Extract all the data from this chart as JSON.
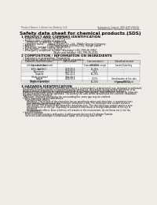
{
  "bg_color": "#f0ede8",
  "header_left": "Product Name: Lithium Ion Battery Cell",
  "header_right_line1": "Substance Control: SRS-049-00015",
  "header_right_line2": "Established / Revision: Dec.7.2010",
  "title": "Safety data sheet for chemical products (SDS)",
  "section1_title": "1 PRODUCT AND COMPANY IDENTIFICATION",
  "section1_lines": [
    "  • Product name: Lithium Ion Battery Cell",
    "  • Product code: Cylindrical-type cell",
    "       SY-B8550, SY-B8550L, SY-B8550A",
    "  • Company name:     Sanyo Electric Co., Ltd., Mobile Energy Company",
    "  • Address:               2001 Kamikosaka, Sumoto-City, Hyogo, Japan",
    "  • Telephone number:  +81-799-26-4111",
    "  • Fax number:  +81-799-26-4121",
    "  • Emergency telephone number (Weekday) +81-799-26-3962",
    "                                         (Night and holiday) +81-799-26-4121"
  ],
  "section2_title": "2 COMPOSITION / INFORMATION ON INGREDIENTS",
  "section2_intro": "  • Substance or preparation: Preparation",
  "section2_sub": "  • Information about the chemical nature of product:",
  "table_headers": [
    "Common chemical name /\nSpecies name",
    "CAS number",
    "Concentration /\nConcentration range",
    "Classification and\nhazard labeling"
  ],
  "table_rows": [
    [
      "Lithium cobalt (laminate)\n(LiMn-Co)(NiO₂)",
      "-",
      "(30-60%)",
      "-"
    ],
    [
      "Iron",
      "7439-89-6",
      "15-25%",
      "-"
    ],
    [
      "Aluminum",
      "7429-90-5",
      "2-5%",
      "-"
    ],
    [
      "Graphite\n(Flaky graphite)\n(Artificial graphite)",
      "7782-42-5\n7782-44-7",
      "10-25%",
      "-"
    ],
    [
      "Copper",
      "7440-50-8",
      "5-15%",
      "Sensitization of the skin\ngroup R43.2"
    ],
    [
      "Organic electrolyte",
      "-",
      "10-20%",
      "Inflammable liquid"
    ]
  ],
  "section3_title": "3 HAZARDS IDENTIFICATION",
  "section3_lines": [
    "  For the battery cell, chemical materials are stored in a hermetically sealed metal case, designed to withstand",
    "  temperatures and pressures encountered during normal use. As a result, during normal use, there is no",
    "  physical danger of ignition or explosion and there is no danger of hazardous materials leakage.",
    "    However, if exposed to a fire added mechanical shocks, decomposes, vented electric source by miss-use,",
    "  the gas release valve will be operated. The battery cell case will be breached at the extreme, hazardous",
    "  materials may be released.",
    "    Moreover, if heated strongly by the surrounding fire, some gas may be emitted."
  ],
  "section3_bullet1": "  • Most important hazard and effects:",
  "section3_human": "      Human health effects:",
  "section3_human_lines": [
    "        Inhalation: The release of the electrolyte has an anesthesia action and stimulates in respiratory tract.",
    "        Skin contact: The release of the electrolyte stimulates a skin. The electrolyte skin contact causes a",
    "        sore and stimulation on the skin.",
    "        Eye contact: The release of the electrolyte stimulates eyes. The electrolyte eye contact causes a sore",
    "        and stimulation on the eye. Especially, a substance that causes a strong inflammation of the eye is",
    "        contained.",
    "        Environmental effects: Since a battery cell remains in the environment, do not throw out it into the",
    "        environment."
  ],
  "section3_specific": "  • Specific hazards:",
  "section3_specific_lines": [
    "      If the electrolyte contacts with water, it will generate detrimental hydrogen fluoride.",
    "      Since the used electrolyte is inflammable liquid, do not bring close to fire."
  ]
}
